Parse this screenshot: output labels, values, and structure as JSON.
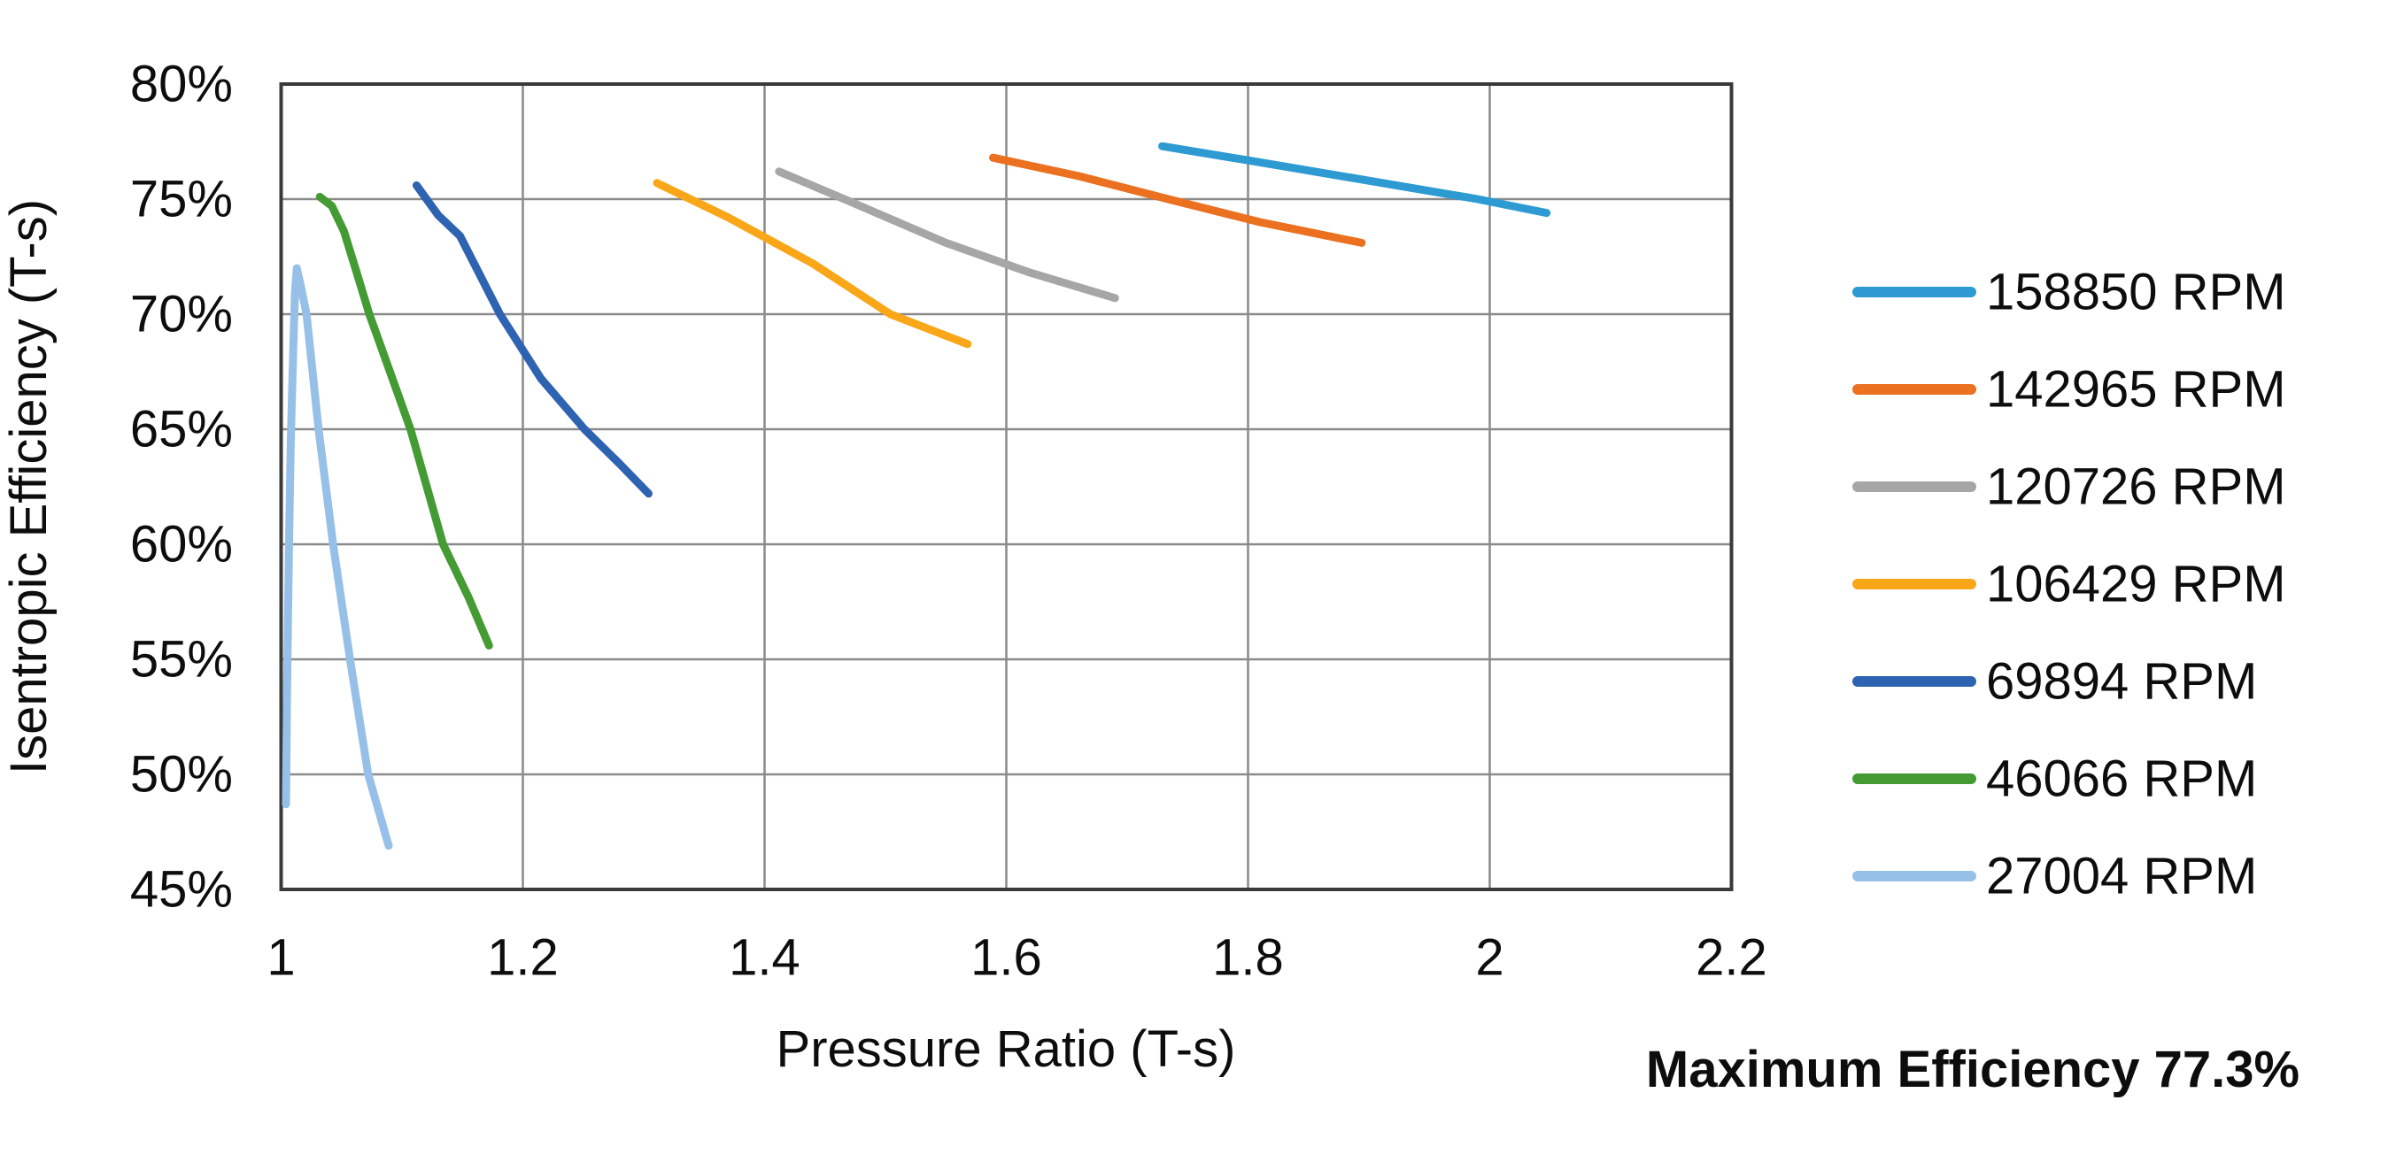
{
  "chart_data": {
    "type": "line",
    "title": "",
    "xlabel": "Pressure Ratio (T-s)",
    "ylabel": "Isentropic Efficiency (T-s)",
    "annotation": {
      "text": "Maximum Efficiency 77.3%",
      "value_pct": 77.3
    },
    "grid": true,
    "legend_position": "right",
    "x_axis": {
      "min": 1.0,
      "max": 2.2,
      "ticks": [
        1.0,
        1.2,
        1.4,
        1.6,
        1.8,
        2.0,
        2.2
      ],
      "tick_labels": [
        "1",
        "1.2",
        "1.4",
        "1.6",
        "1.8",
        "2",
        "2.2"
      ]
    },
    "y_axis": {
      "min": 45,
      "max": 80,
      "unit": "%",
      "ticks": [
        45,
        50,
        55,
        60,
        65,
        70,
        75,
        80
      ],
      "tick_labels": [
        "45%",
        "50%",
        "55%",
        "60%",
        "65%",
        "70%",
        "75%",
        "80%"
      ]
    },
    "series": [
      {
        "name": "158850 RPM",
        "color": "#2E9AD2",
        "points": [
          [
            1.729,
            77.3
          ],
          [
            1.81,
            76.6
          ],
          [
            1.9,
            75.8
          ],
          [
            1.99,
            75.0
          ],
          [
            2.047,
            74.4
          ]
        ]
      },
      {
        "name": "142965 RPM",
        "color": "#EB701F",
        "points": [
          [
            1.589,
            76.8
          ],
          [
            1.66,
            76.0
          ],
          [
            1.734,
            75.0
          ],
          [
            1.81,
            74.0
          ],
          [
            1.894,
            73.1
          ]
        ]
      },
      {
        "name": "120726 RPM",
        "color": "#A6A6A6",
        "points": [
          [
            1.412,
            76.2
          ],
          [
            1.466,
            75.0
          ],
          [
            1.55,
            73.1
          ],
          [
            1.62,
            71.8
          ],
          [
            1.69,
            70.7
          ]
        ]
      },
      {
        "name": "106429 RPM",
        "color": "#FAA619",
        "points": [
          [
            1.311,
            75.7
          ],
          [
            1.37,
            74.2
          ],
          [
            1.44,
            72.2
          ],
          [
            1.504,
            70.0
          ],
          [
            1.568,
            68.7
          ]
        ]
      },
      {
        "name": "69894 RPM",
        "color": "#2E63B2",
        "points": [
          [
            1.112,
            75.6
          ],
          [
            1.13,
            74.3
          ],
          [
            1.148,
            73.4
          ],
          [
            1.181,
            70.0
          ],
          [
            1.215,
            67.2
          ],
          [
            1.251,
            65.0
          ],
          [
            1.28,
            63.5
          ],
          [
            1.304,
            62.2
          ]
        ]
      },
      {
        "name": "46066 RPM",
        "color": "#449B33",
        "points": [
          [
            1.032,
            75.1
          ],
          [
            1.042,
            74.7
          ],
          [
            1.052,
            73.6
          ],
          [
            1.062,
            71.9
          ],
          [
            1.073,
            70.0
          ],
          [
            1.09,
            67.5
          ],
          [
            1.107,
            65.0
          ],
          [
            1.134,
            60.0
          ],
          [
            1.155,
            57.7
          ],
          [
            1.172,
            55.6
          ]
        ]
      },
      {
        "name": "27004 RPM",
        "color": "#96C0E8",
        "points": [
          [
            1.004,
            48.7
          ],
          [
            1.005,
            54.0
          ],
          [
            1.0065,
            60.0
          ],
          [
            1.008,
            64.5
          ],
          [
            1.01,
            68.5
          ],
          [
            1.0115,
            71.0
          ],
          [
            1.013,
            72.0
          ],
          [
            1.016,
            71.3
          ],
          [
            1.021,
            70.0
          ],
          [
            1.031,
            65.0
          ],
          [
            1.043,
            60.0
          ],
          [
            1.057,
            55.0
          ],
          [
            1.072,
            50.0
          ],
          [
            1.089,
            46.9
          ]
        ]
      }
    ]
  },
  "colors": {
    "background": "#FFFFFF",
    "grid": "#8A8A8A",
    "axis_border": "#3A3A3A",
    "text": "#0D0D0D"
  }
}
